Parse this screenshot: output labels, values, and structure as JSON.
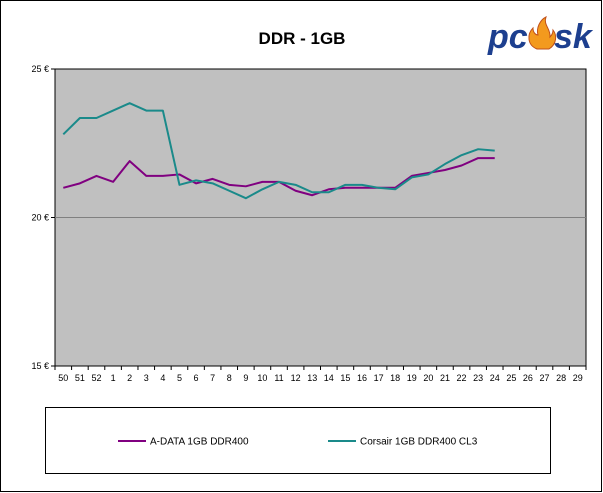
{
  "logo": {
    "text": "pc•sk",
    "color": "#1d3f8f",
    "flame_color": "#f39a1e"
  },
  "colors": {
    "plot_bg": "#c0c0c0",
    "frame": "#000000",
    "gridline": "#808080",
    "series_1": "#800080",
    "series_2": "#1a8a8a"
  },
  "chart_data": {
    "type": "line",
    "title": "DDR - 1GB",
    "xlabel": "",
    "ylabel": "",
    "categories": [
      "50",
      "51",
      "52",
      "1",
      "2",
      "3",
      "4",
      "5",
      "6",
      "7",
      "8",
      "9",
      "10",
      "11",
      "12",
      "13",
      "14",
      "15",
      "16",
      "17",
      "18",
      "19",
      "20",
      "21",
      "22",
      "23",
      "24",
      "25",
      "26",
      "27",
      "28",
      "29"
    ],
    "ylim": [
      15,
      25
    ],
    "yticks": [
      15,
      20,
      25
    ],
    "ytick_labels": [
      "15 €",
      "20 €",
      "25 €"
    ],
    "grid": "horizontal",
    "legend_position": "bottom",
    "series": [
      {
        "name": "A-DATA 1GB DDR400",
        "values": [
          21.0,
          21.15,
          21.4,
          21.2,
          21.9,
          21.4,
          21.4,
          21.45,
          21.15,
          21.3,
          21.1,
          21.05,
          21.2,
          21.2,
          20.9,
          20.75,
          20.95,
          21.0,
          21.0,
          21.0,
          21.0,
          21.4,
          21.5,
          21.6,
          21.75,
          22.0,
          22.0,
          null,
          null,
          null,
          null,
          null
        ]
      },
      {
        "name": "Corsair 1GB DDR400 CL3",
        "values": [
          22.8,
          23.35,
          23.35,
          23.6,
          23.85,
          23.6,
          23.6,
          21.1,
          21.25,
          21.15,
          20.9,
          20.65,
          20.95,
          21.2,
          21.1,
          20.85,
          20.85,
          21.1,
          21.1,
          21.0,
          20.95,
          21.35,
          21.45,
          21.8,
          22.1,
          22.3,
          22.25,
          null,
          null,
          null,
          null,
          null
        ]
      }
    ]
  }
}
